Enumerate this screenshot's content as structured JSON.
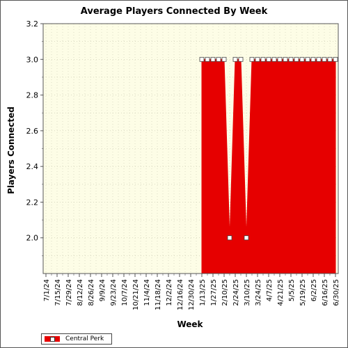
{
  "chart_data": {
    "type": "area",
    "title": "Average Players Connected By Week",
    "xlabel": "Week",
    "ylabel": "Players Connected",
    "ylim": [
      1.8,
      3.2
    ],
    "yticks": [
      "2.0",
      "2.2",
      "2.4",
      "2.6",
      "2.8",
      "3.0",
      "3.2"
    ],
    "xtick_labels": [
      "7/1/24",
      "7/15/24",
      "7/29/24",
      "8/12/24",
      "8/26/24",
      "9/9/24",
      "9/23/24",
      "10/7/24",
      "10/21/24",
      "11/4/24",
      "11/18/24",
      "12/2/24",
      "12/16/24",
      "12/30/24",
      "1/13/25",
      "1/27/25",
      "2/10/25",
      "2/24/25",
      "3/10/25",
      "3/24/25",
      "4/7/25",
      "4/21/25",
      "5/5/25",
      "5/19/25",
      "6/2/25",
      "6/16/25",
      "6/30/25"
    ],
    "grid": true,
    "legend_position": "bottom-left",
    "series": [
      {
        "name": "Central Perk",
        "color": "#e60000",
        "x": [
          "1/13/25",
          "1/20/25",
          "1/27/25",
          "2/3/25",
          "2/10/25",
          "2/17/25",
          "2/24/25",
          "3/3/25",
          "3/10/25",
          "3/17/25",
          "3/24/25",
          "3/31/25",
          "4/7/25",
          "4/14/25",
          "4/21/25",
          "4/28/25",
          "5/5/25",
          "5/12/25",
          "5/19/25",
          "5/26/25",
          "6/2/25",
          "6/9/25",
          "6/16/25",
          "6/23/25",
          "6/30/25"
        ],
        "values": [
          3.0,
          3.0,
          3.0,
          3.0,
          3.0,
          2.0,
          3.0,
          3.0,
          2.0,
          3.0,
          3.0,
          3.0,
          3.0,
          3.0,
          3.0,
          3.0,
          3.0,
          3.0,
          3.0,
          3.0,
          3.0,
          3.0,
          3.0,
          3.0,
          3.0
        ]
      }
    ]
  }
}
